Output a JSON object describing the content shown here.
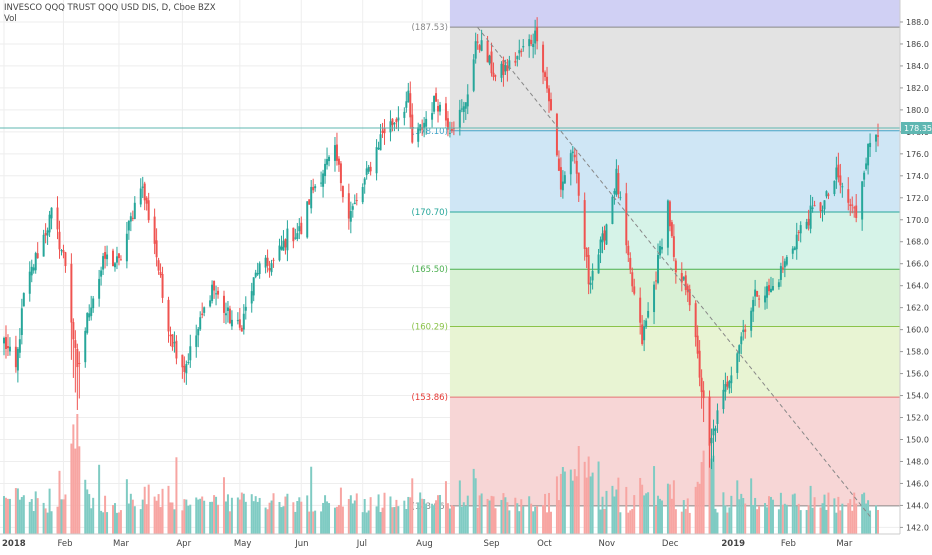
{
  "header": {
    "symbol_line": "INVESCO QQQ TRUST QQQ USD DIS, D, Cboe BZX",
    "vol_label": "Vol"
  },
  "colors": {
    "up": "#26a69a",
    "down": "#ef5350",
    "vol_up": "#7fcbc3",
    "vol_down": "#f7a5a2",
    "price_line": "#5fb7b2",
    "trend_line": "#888888"
  },
  "chart_data": {
    "type": "candlestick",
    "price_axis": {
      "ticks": [
        142,
        144,
        146,
        148,
        150,
        152,
        154,
        156,
        158,
        160,
        162,
        164,
        166,
        168,
        170,
        172,
        174,
        176,
        178,
        180,
        182,
        184,
        186,
        188
      ],
      "range": [
        141.4,
        190.0
      ]
    },
    "time_axis": {
      "labels": [
        "2018",
        "Feb",
        "Mar",
        "Apr",
        "May",
        "Jun",
        "Jul",
        "Aug",
        "Sep",
        "Oct",
        "Nov",
        "Dec",
        "2019",
        "Feb",
        "Mar"
      ]
    },
    "last_price": {
      "value": 178.35,
      "label": "178.35"
    },
    "fibonacci_retracement": {
      "top_level": 190.0,
      "levels": [
        {
          "label": "(187.53)",
          "value": 187.53,
          "text_color": "#888888",
          "line_color": "#888888",
          "fill": "#e3e3e3"
        },
        {
          "label": "(178.10)",
          "value": 178.1,
          "text_color": "#42a5c9",
          "line_color": "#42a5c9",
          "fill": "#cfe6f5"
        },
        {
          "label": "(170.70)",
          "value": 170.7,
          "text_color": "#26a69a",
          "line_color": "#26a69a",
          "fill": "#d6f3e8"
        },
        {
          "label": "(165.50)",
          "value": 165.5,
          "text_color": "#4caf50",
          "line_color": "#4caf50",
          "fill": "#d9f1d5"
        },
        {
          "label": "(160.29)",
          "value": 160.29,
          "text_color": "#8bc34a",
          "line_color": "#8bc34a",
          "fill": "#e8f4d3"
        },
        {
          "label": "(153.86)",
          "value": 153.86,
          "text_color": "#e53935",
          "line_color": "#e57373",
          "fill": "#f7d6d6"
        },
        {
          "label": "(143.96)",
          "value": 143.96,
          "text_color": "#888888",
          "line_color": "#888888",
          "fill": null
        }
      ],
      "top_band_fill": "#d0d0f4"
    },
    "trend_line": {
      "from": {
        "date": "2018-08-29",
        "value": 187.5
      },
      "to": {
        "date": "2019-03-15",
        "value": 143.0
      }
    },
    "series_anchors": [
      [
        "2018-01-02",
        159.0
      ],
      [
        "2018-01-08",
        156.3
      ],
      [
        "2018-01-12",
        163.0
      ],
      [
        "2018-01-18",
        166.5
      ],
      [
        "2018-01-26",
        170.5
      ],
      [
        "2018-02-02",
        166.0
      ],
      [
        "2018-02-08",
        156.0
      ],
      [
        "2018-02-14",
        162.0
      ],
      [
        "2018-02-22",
        166.5
      ],
      [
        "2018-03-01",
        166.0
      ],
      [
        "2018-03-07",
        170.0
      ],
      [
        "2018-03-12",
        173.5
      ],
      [
        "2018-03-19",
        168.0
      ],
      [
        "2018-03-23",
        163.0
      ],
      [
        "2018-03-28",
        159.0
      ],
      [
        "2018-04-03",
        156.5
      ],
      [
        "2018-04-10",
        160.0
      ],
      [
        "2018-04-17",
        164.0
      ],
      [
        "2018-04-24",
        161.5
      ],
      [
        "2018-05-01",
        160.0
      ],
      [
        "2018-05-10",
        165.5
      ],
      [
        "2018-05-18",
        166.0
      ],
      [
        "2018-05-25",
        168.5
      ],
      [
        "2018-06-01",
        169.0
      ],
      [
        "2018-06-06",
        172.5
      ],
      [
        "2018-06-12",
        174.5
      ],
      [
        "2018-06-18",
        176.0
      ],
      [
        "2018-06-25",
        170.5
      ],
      [
        "2018-06-29",
        171.5
      ],
      [
        "2018-07-06",
        175.0
      ],
      [
        "2018-07-12",
        178.0
      ],
      [
        "2018-07-18",
        179.0
      ],
      [
        "2018-07-25",
        181.0
      ],
      [
        "2018-07-27",
        177.0
      ],
      [
        "2018-08-01",
        178.5
      ],
      [
        "2018-08-08",
        181.0
      ],
      [
        "2018-08-15",
        178.5
      ],
      [
        "2018-08-22",
        180.0
      ],
      [
        "2018-08-29",
        186.5
      ],
      [
        "2018-09-07",
        183.0
      ],
      [
        "2018-09-14",
        184.0
      ],
      [
        "2018-09-21",
        185.5
      ],
      [
        "2018-09-28",
        187.0
      ],
      [
        "2018-10-04",
        181.0
      ],
      [
        "2018-10-10",
        173.0
      ],
      [
        "2018-10-16",
        176.5
      ],
      [
        "2018-10-24",
        164.5
      ],
      [
        "2018-10-31",
        168.0
      ],
      [
        "2018-11-07",
        174.0
      ],
      [
        "2018-11-13",
        166.0
      ],
      [
        "2018-11-20",
        159.0
      ],
      [
        "2018-11-26",
        164.0
      ],
      [
        "2018-12-03",
        171.5
      ],
      [
        "2018-12-07",
        164.5
      ],
      [
        "2018-12-13",
        164.0
      ],
      [
        "2018-12-19",
        156.0
      ],
      [
        "2018-12-24",
        149.0
      ],
      [
        "2018-12-27",
        151.5
      ],
      [
        "2019-01-04",
        156.5
      ],
      [
        "2019-01-10",
        160.0
      ],
      [
        "2019-01-17",
        163.5
      ],
      [
        "2019-01-24",
        163.5
      ],
      [
        "2019-01-31",
        166.0
      ],
      [
        "2019-02-06",
        168.5
      ],
      [
        "2019-02-13",
        170.5
      ],
      [
        "2019-02-20",
        171.5
      ],
      [
        "2019-02-26",
        174.0
      ],
      [
        "2019-03-04",
        171.5
      ],
      [
        "2019-03-08",
        170.5
      ],
      [
        "2019-03-12",
        175.0
      ],
      [
        "2019-03-15",
        177.0
      ],
      [
        "2019-03-19",
        178.35
      ]
    ]
  }
}
